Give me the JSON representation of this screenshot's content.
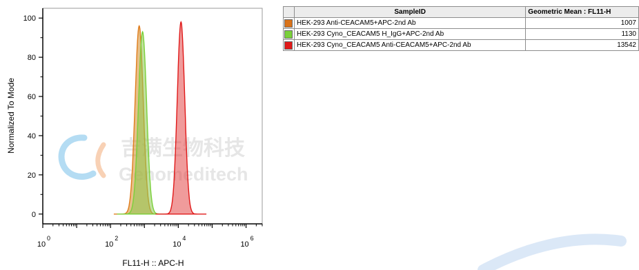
{
  "chart_data": {
    "type": "area",
    "xlabel": "FL11-H :: APC-H",
    "ylabel": "Normalized To Mode",
    "x_scale": "log",
    "xlim": [
      1,
      3000000
    ],
    "ylim": [
      -5,
      105
    ],
    "x_ticks": [
      {
        "value": 1,
        "base": "10",
        "exp": "0"
      },
      {
        "value": 100,
        "base": "10",
        "exp": "2"
      },
      {
        "value": 10000,
        "base": "10",
        "exp": "4"
      },
      {
        "value": 1000000,
        "base": "10",
        "exp": "6"
      }
    ],
    "y_ticks": [
      "0",
      "20",
      "40",
      "60",
      "80",
      "100"
    ],
    "grid": false,
    "series": [
      {
        "name": "HEK-293 Anti-CEACAM5+APC-2nd Ab",
        "color": "#e07c1c",
        "fill": "rgba(210,140,40,0.55)",
        "peak_x": 700,
        "peak_y": 96,
        "log_sigma": 0.12
      },
      {
        "name": "HEK-293 Cyno_CEACAM5 H_IgG+APC-2nd Ab",
        "color": "#7ad03a",
        "fill": "rgba(140,200,80,0.55)",
        "peak_x": 880,
        "peak_y": 93,
        "log_sigma": 0.12
      },
      {
        "name": "HEK-293 Cyno_CEACAM5 Anti-CEACAM5+APC-2nd Ab",
        "color": "#e01919",
        "fill": "rgba(225,55,55,0.5)",
        "peak_x": 12000,
        "peak_y": 98,
        "log_sigma": 0.11
      }
    ]
  },
  "table": {
    "headers": [
      "SampleID",
      "Geometric Mean : FL11-H"
    ],
    "rows": [
      {
        "color": "#d9731a",
        "sample": "HEK-293 Anti-CEACAM5+APC-2nd Ab",
        "value": "1007"
      },
      {
        "color": "#7ad03a",
        "sample": "HEK-293 Cyno_CEACAM5 H_IgG+APC-2nd Ab",
        "value": "1130"
      },
      {
        "color": "#e01919",
        "sample": "HEK-293 Cyno_CEACAM5 Anti-CEACAM5+APC-2nd Ab",
        "value": "13542"
      }
    ]
  },
  "watermark": {
    "cn": "吉满生物科技",
    "en": "Genomeditech"
  }
}
